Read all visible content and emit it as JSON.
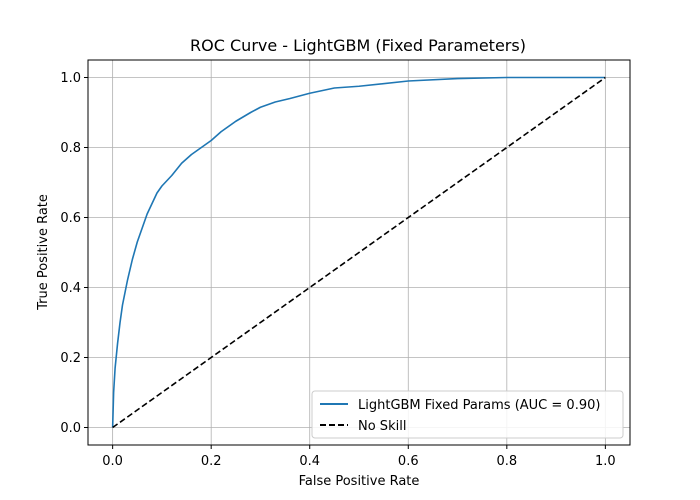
{
  "chart_data": {
    "type": "line",
    "title": "ROC Curve - LightGBM (Fixed Parameters)",
    "xlabel": "False Positive Rate",
    "ylabel": "True Positive Rate",
    "xlim": [
      -0.05,
      1.05
    ],
    "ylim": [
      -0.05,
      1.05
    ],
    "xticks": [
      "0.0",
      "0.2",
      "0.4",
      "0.6",
      "0.8",
      "1.0"
    ],
    "yticks": [
      "0.0",
      "0.2",
      "0.4",
      "0.6",
      "0.8",
      "1.0"
    ],
    "grid": true,
    "legend_position": "lower-right",
    "series": [
      {
        "name": "LightGBM Fixed Params (AUC = 0.90)",
        "color": "#1f77b4",
        "style": "solid",
        "x": [
          0.0,
          0.002,
          0.005,
          0.01,
          0.015,
          0.02,
          0.03,
          0.04,
          0.05,
          0.06,
          0.07,
          0.08,
          0.09,
          0.1,
          0.12,
          0.14,
          0.16,
          0.18,
          0.2,
          0.22,
          0.25,
          0.28,
          0.3,
          0.33,
          0.36,
          0.4,
          0.45,
          0.5,
          0.6,
          0.7,
          0.8,
          0.9,
          1.0
        ],
        "y": [
          0.0,
          0.1,
          0.17,
          0.24,
          0.3,
          0.35,
          0.42,
          0.48,
          0.53,
          0.57,
          0.61,
          0.64,
          0.67,
          0.69,
          0.72,
          0.755,
          0.78,
          0.8,
          0.82,
          0.845,
          0.875,
          0.9,
          0.915,
          0.93,
          0.94,
          0.955,
          0.97,
          0.975,
          0.99,
          0.997,
          1.0,
          1.0,
          1.0
        ]
      },
      {
        "name": "No Skill",
        "color": "#000000",
        "style": "dashed",
        "x": [
          0.0,
          1.0
        ],
        "y": [
          0.0,
          1.0
        ]
      }
    ]
  }
}
